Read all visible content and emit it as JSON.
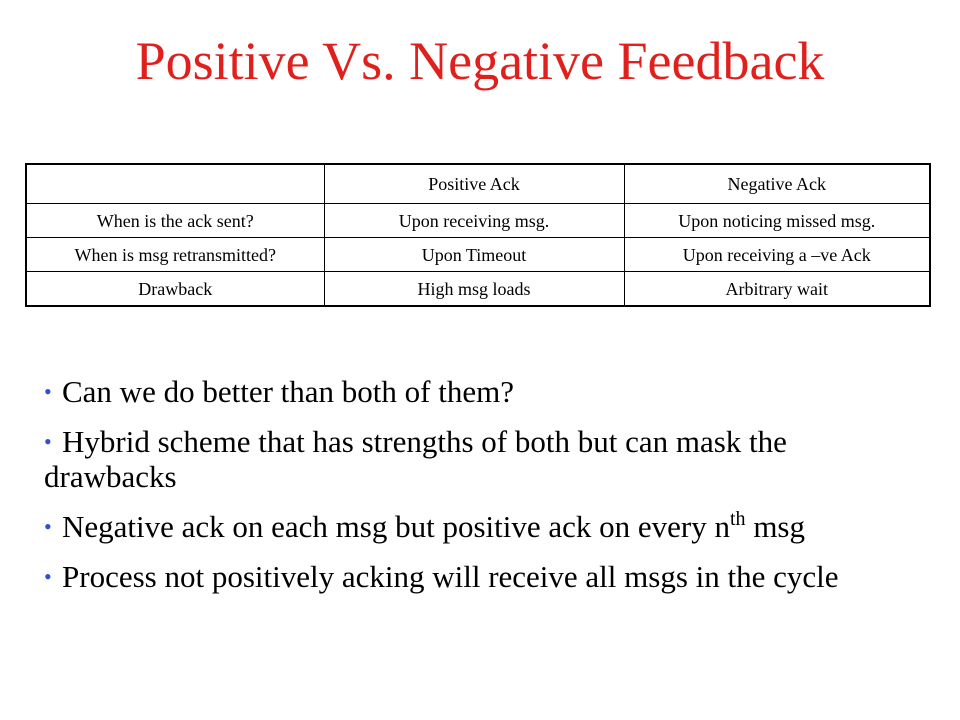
{
  "title": "Positive Vs. Negative Feedback",
  "colors": {
    "title": "#e0201c",
    "bullet": "#2f4fd6"
  },
  "table": {
    "headers": [
      "",
      "Positive Ack",
      "Negative Ack"
    ],
    "rows": [
      [
        "When is the ack sent?",
        "Upon receiving msg.",
        "Upon noticing missed msg."
      ],
      [
        "When is msg retransmitted?",
        "Upon Timeout",
        "Upon receiving a –ve Ack"
      ],
      [
        "Drawback",
        "High msg loads",
        "Arbitrary wait"
      ]
    ]
  },
  "bullet_marker": "•",
  "bullets": [
    {
      "text": "Can we do better than both of them?"
    },
    {
      "text": "Hybrid scheme that has strengths of both but can mask the drawbacks"
    },
    {
      "text": "Negative ack on each msg but positive ack on every n",
      "sup": "th",
      "tail": " msg"
    },
    {
      "text": "Process not positively acking will receive all msgs in the cycle"
    }
  ]
}
